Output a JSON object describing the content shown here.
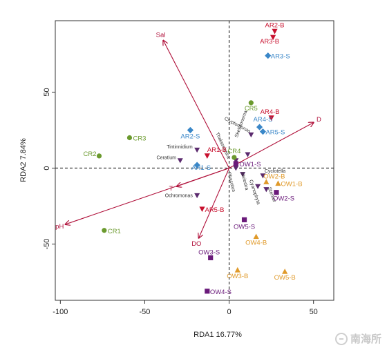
{
  "chart_data": {
    "type": "scatter",
    "subtype": "RDA biplot",
    "xlabel": "RDA1  16.77%",
    "ylabel": "RDA2  7.84%",
    "xlim": [
      -103,
      62
    ],
    "ylim": [
      -87,
      97
    ],
    "xticks": [
      -100,
      -50,
      0,
      50
    ],
    "yticks": [
      -50,
      0,
      50
    ],
    "reference_lines": "dashed lines at x=0 and y=0",
    "grid": false,
    "colors": {
      "CR": "#6b9a2e",
      "AR": "#c8102e",
      "ARS": "#3a87c8",
      "OW": "#6a1a7a",
      "OWB": "#e09a2a",
      "species": "#5b2a6e",
      "env": "#b0103a"
    },
    "series": [
      {
        "key": "CR",
        "shape": "circle",
        "color_key": "CR",
        "points": [
          {
            "label": "CR1",
            "x": -74,
            "y": -41
          },
          {
            "label": "CR2",
            "x": -77,
            "y": 8
          },
          {
            "label": "CR3",
            "x": -59,
            "y": 20
          },
          {
            "label": "CR4",
            "x": 3,
            "y": 7
          },
          {
            "label": "CR5",
            "x": 13,
            "y": 43
          }
        ]
      },
      {
        "key": "AR-B",
        "shape": "triangle-down",
        "color_key": "AR",
        "points": [
          {
            "label": "AR1-B",
            "x": -13,
            "y": 8
          },
          {
            "label": "AR2-B",
            "x": 27,
            "y": 90
          },
          {
            "label": "AR3-B",
            "x": 26,
            "y": 86
          },
          {
            "label": "AR4-B",
            "x": 25,
            "y": 33
          },
          {
            "label": "AR5-B",
            "x": -16,
            "y": -27
          }
        ]
      },
      {
        "key": "AR-S",
        "shape": "diamond",
        "color_key": "ARS",
        "points": [
          {
            "label": "AR1-S",
            "x": -19,
            "y": 2
          },
          {
            "label": "AR2-S",
            "x": -23,
            "y": 25
          },
          {
            "label": "AR3-S",
            "x": 23,
            "y": 74
          },
          {
            "label": "AR4-S",
            "x": 18,
            "y": 27
          },
          {
            "label": "AR5-S",
            "x": 20,
            "y": 24
          }
        ]
      },
      {
        "key": "OW-S",
        "shape": "square",
        "color_key": "OW",
        "points": [
          {
            "label": "OW1-S",
            "x": 4,
            "y": 3
          },
          {
            "label": "OW2-S",
            "x": 28,
            "y": -16
          },
          {
            "label": "OW3-S",
            "x": -11,
            "y": -59
          },
          {
            "label": "OW4-S",
            "x": -13,
            "y": -81
          },
          {
            "label": "OW5-S",
            "x": 9,
            "y": -34
          }
        ]
      },
      {
        "key": "OW-B",
        "shape": "triangle-up",
        "color_key": "OWB",
        "points": [
          {
            "label": "OW1-B",
            "x": 29,
            "y": -10
          },
          {
            "label": "OW2-B",
            "x": 22,
            "y": -9
          },
          {
            "label": "OW3-B",
            "x": 5,
            "y": -67
          },
          {
            "label": "OW4-B",
            "x": 16,
            "y": -45
          },
          {
            "label": "OW5-B",
            "x": 33,
            "y": -68
          }
        ]
      }
    ],
    "species": [
      {
        "label": "Tintinnidium",
        "x": -19,
        "y": 12
      },
      {
        "label": "Ceratium",
        "x": -29,
        "y": 5
      },
      {
        "label": "Ochromonas",
        "x": -19,
        "y": -18
      },
      {
        "label": "Cryptomonas",
        "x": 13,
        "y": 22
      },
      {
        "label": "Thalassiosira",
        "x": 4,
        "y": 5
      },
      {
        "label": "Skeletonema",
        "x": 11,
        "y": 9
      },
      {
        "label": "Phacotus",
        "x": 4,
        "y": 0
      },
      {
        "label": "Melosira",
        "x": 8,
        "y": -4
      },
      {
        "label": "Cyclotella",
        "x": 20,
        "y": -5
      },
      {
        "label": "Cyanophyta",
        "x": 17,
        "y": -12
      },
      {
        "label": "Stentor",
        "x": 22,
        "y": -14
      }
    ],
    "species_label_positions": [
      {
        "label": "Tintinnidium",
        "x": -37,
        "y": 13,
        "rotate": 0
      },
      {
        "label": "Ceratium",
        "x": -43,
        "y": 6,
        "rotate": 0
      },
      {
        "label": "Ochromonas",
        "x": -38,
        "y": -19,
        "rotate": 0
      },
      {
        "label": "Cryptomonas",
        "x": -3,
        "y": 32,
        "rotate": 28
      },
      {
        "label": "Thalassiosira",
        "x": -8,
        "y": 23,
        "rotate": 65
      },
      {
        "label": "Skeletonema",
        "x": 5,
        "y": 20,
        "rotate": -70
      },
      {
        "label": "Phacotus",
        "x": -1,
        "y": -3,
        "rotate": 75
      },
      {
        "label": "Melosira",
        "x": 7,
        "y": -3,
        "rotate": 75
      },
      {
        "label": "Cyclotella",
        "x": 21,
        "y": -3,
        "rotate": 0
      },
      {
        "label": "Cyanophyta",
        "x": 12,
        "y": -8,
        "rotate": 72
      },
      {
        "label": "Stentor",
        "x": 23,
        "y": -13,
        "rotate": 70
      }
    ],
    "environment_vectors": [
      {
        "label": "Sal",
        "x": -39,
        "y": 84
      },
      {
        "label": "D",
        "x": 50,
        "y": 30
      },
      {
        "label": "T",
        "x": -31,
        "y": -12
      },
      {
        "label": "pH",
        "x": -97,
        "y": -37
      },
      {
        "label": "DO",
        "x": -18,
        "y": -46
      }
    ]
  },
  "watermark": {
    "text": "南海所"
  }
}
